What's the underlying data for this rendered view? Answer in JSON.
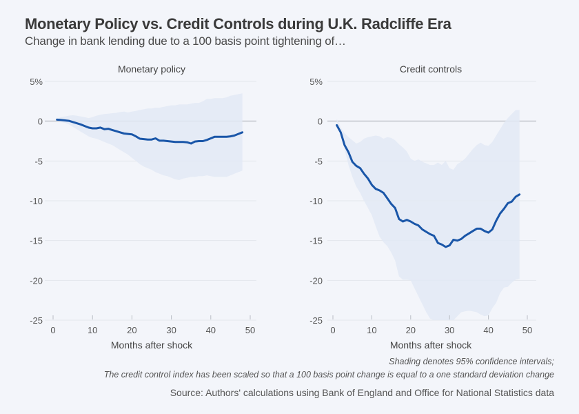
{
  "header": {
    "title": "Monetary Policy vs. Credit Controls during U.K. Radcliffe Era",
    "subtitle": "Change in bank lending due to a 100 basis point tightening of…"
  },
  "footer": {
    "note_line1": "Shading denotes 95% confidence intervals;",
    "note_line2": "The credit control index has been scaled so that a 100 basis point change is equal to a one standard deviation change",
    "source": "Source: Authors' calculations using Bank of England and Office for National Statistics data"
  },
  "colors": {
    "background": "#f3f5fa",
    "line": "#1a56a8",
    "band": "#e2e9f5",
    "zero_line": "#cfd2d8",
    "grid": "#e3e6ec"
  },
  "chart_data": [
    {
      "type": "line",
      "title": "Monetary policy",
      "xlabel": "Months after shock",
      "ylabel": "",
      "xlim": [
        0,
        50
      ],
      "ylim": [
        -25,
        5
      ],
      "xticks": [
        "0",
        "10",
        "20",
        "30",
        "40",
        "50"
      ],
      "yticks": [
        "5%",
        "0",
        "-5",
        "-10",
        "-15",
        "-20",
        "-25"
      ],
      "ytick_values": [
        5,
        0,
        -5,
        -10,
        -15,
        -20,
        -25
      ],
      "xtick_values": [
        0,
        10,
        20,
        30,
        40,
        50
      ],
      "grid": true,
      "x": [
        1,
        2,
        3,
        4,
        5,
        6,
        7,
        8,
        9,
        10,
        11,
        12,
        13,
        14,
        15,
        16,
        17,
        18,
        19,
        20,
        21,
        22,
        23,
        24,
        25,
        26,
        27,
        28,
        29,
        30,
        31,
        32,
        33,
        34,
        35,
        36,
        37,
        38,
        39,
        40,
        41,
        42,
        43,
        44,
        45,
        46,
        47,
        48
      ],
      "series": [
        {
          "name": "Estimate",
          "values": [
            0.2,
            0.15,
            0.1,
            0.05,
            -0.1,
            -0.25,
            -0.4,
            -0.6,
            -0.8,
            -0.9,
            -0.9,
            -0.8,
            -1.0,
            -0.95,
            -1.1,
            -1.25,
            -1.4,
            -1.55,
            -1.6,
            -1.65,
            -1.9,
            -2.2,
            -2.25,
            -2.3,
            -2.3,
            -2.15,
            -2.45,
            -2.45,
            -2.5,
            -2.55,
            -2.6,
            -2.6,
            -2.6,
            -2.65,
            -2.8,
            -2.55,
            -2.5,
            -2.5,
            -2.35,
            -2.15,
            -1.95,
            -1.95,
            -1.95,
            -1.95,
            -1.9,
            -1.8,
            -1.6,
            -1.4
          ]
        },
        {
          "name": "Upper 95% CI",
          "values": [
            0.3,
            0.5,
            0.6,
            0.7,
            0.75,
            0.7,
            0.6,
            0.5,
            0.4,
            0.5,
            0.7,
            0.8,
            0.9,
            0.95,
            1.0,
            1.05,
            1.15,
            1.2,
            1.1,
            1.2,
            1.3,
            1.4,
            1.5,
            1.6,
            1.6,
            1.7,
            1.7,
            1.8,
            1.9,
            2.0,
            2.0,
            2.1,
            2.1,
            2.1,
            2.2,
            2.3,
            2.3,
            2.5,
            2.8,
            2.8,
            2.9,
            2.9,
            2.9,
            3.0,
            3.2,
            3.3,
            3.4,
            3.5
          ]
        },
        {
          "name": "Lower 95% CI",
          "values": [
            0.1,
            -0.1,
            -0.2,
            -0.4,
            -0.7,
            -1.0,
            -1.3,
            -1.6,
            -1.9,
            -2.1,
            -2.2,
            -2.4,
            -2.6,
            -2.8,
            -3.0,
            -3.3,
            -3.6,
            -3.9,
            -4.2,
            -4.6,
            -5.0,
            -5.4,
            -5.7,
            -5.9,
            -6.1,
            -6.4,
            -6.6,
            -6.8,
            -6.9,
            -7.1,
            -7.3,
            -7.4,
            -7.2,
            -7.1,
            -7.0,
            -7.0,
            -6.9,
            -6.9,
            -6.8,
            -6.9,
            -7.0,
            -7.0,
            -7.0,
            -7.0,
            -6.8,
            -6.6,
            -6.4,
            -6.2
          ]
        }
      ]
    },
    {
      "type": "line",
      "title": "Credit controls",
      "xlabel": "Months after shock",
      "ylabel": "",
      "xlim": [
        0,
        50
      ],
      "ylim": [
        -25,
        5
      ],
      "xticks": [
        "0",
        "10",
        "20",
        "30",
        "40",
        "50"
      ],
      "yticks": [
        "5%",
        "0",
        "-5",
        "-10",
        "-15",
        "-20",
        "-25"
      ],
      "ytick_values": [
        5,
        0,
        -5,
        -10,
        -15,
        -20,
        -25
      ],
      "xtick_values": [
        0,
        10,
        20,
        30,
        40,
        50
      ],
      "grid": true,
      "x": [
        1,
        2,
        3,
        4,
        5,
        6,
        7,
        8,
        9,
        10,
        11,
        12,
        13,
        14,
        15,
        16,
        17,
        18,
        19,
        20,
        21,
        22,
        23,
        24,
        25,
        26,
        27,
        28,
        29,
        30,
        31,
        32,
        33,
        34,
        35,
        36,
        37,
        38,
        39,
        40,
        41,
        42,
        43,
        44,
        45,
        46,
        47,
        48
      ],
      "series": [
        {
          "name": "Estimate",
          "values": [
            -0.5,
            -1.4,
            -3.0,
            -3.9,
            -5.1,
            -5.6,
            -5.9,
            -6.6,
            -7.2,
            -8.0,
            -8.5,
            -8.7,
            -9.0,
            -9.7,
            -10.4,
            -10.9,
            -12.3,
            -12.6,
            -12.4,
            -12.6,
            -12.9,
            -13.1,
            -13.6,
            -13.9,
            -14.2,
            -14.4,
            -15.3,
            -15.5,
            -15.8,
            -15.6,
            -14.9,
            -15.0,
            -14.8,
            -14.4,
            -14.1,
            -13.8,
            -13.5,
            -13.5,
            -13.8,
            -14.0,
            -13.6,
            -12.5,
            -11.6,
            -11.0,
            -10.3,
            -10.1,
            -9.5,
            -9.2
          ]
        },
        {
          "name": "Upper 95% CI",
          "values": [
            0.3,
            -0.8,
            -1.5,
            -2.0,
            -2.4,
            -2.8,
            -2.6,
            -2.2,
            -2.0,
            -1.9,
            -1.8,
            -1.9,
            -2.2,
            -2.0,
            -2.1,
            -2.4,
            -2.9,
            -3.3,
            -3.8,
            -4.7,
            -5.0,
            -4.8,
            -5.1,
            -5.3,
            -5.5,
            -5.5,
            -5.2,
            -5.5,
            -5.0,
            -5.9,
            -6.1,
            -5.4,
            -5.1,
            -4.7,
            -4.1,
            -3.5,
            -3.0,
            -2.7,
            -3.0,
            -3.1,
            -2.6,
            -1.8,
            -1.0,
            -0.2,
            0.4,
            0.9,
            1.4,
            1.4
          ]
        },
        {
          "name": "Lower 95% CI",
          "values": [
            0.0,
            -1.8,
            -3.5,
            -5.5,
            -7.0,
            -8.2,
            -9.0,
            -10.0,
            -10.9,
            -11.8,
            -13.2,
            -14.5,
            -15.2,
            -15.7,
            -16.5,
            -17.5,
            -19.5,
            -19.9,
            -19.9,
            -20.0,
            -21.0,
            -22.0,
            -23.0,
            -24.0,
            -24.8,
            -25.0,
            -25.5,
            -26.0,
            -26.0,
            -25.5,
            -25.0,
            -24.5,
            -24.0,
            -23.9,
            -23.8,
            -23.9,
            -24.0,
            -24.3,
            -24.5,
            -24.4,
            -23.5,
            -22.8,
            -21.6,
            -20.9,
            -20.8,
            -20.3,
            -19.9,
            -19.8
          ]
        }
      ]
    }
  ]
}
